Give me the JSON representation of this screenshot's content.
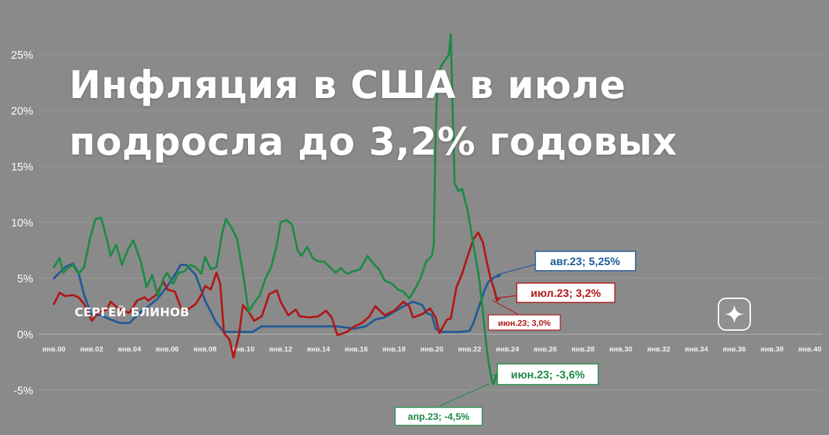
{
  "headline": {
    "line1": "Инфляция в США в июле",
    "line2": "подросла до 3,2% годовых"
  },
  "author": "СЕРГЕЙ БЛИНОВ",
  "colors": {
    "background": "#8a8a8a",
    "blue": "#1f5a96",
    "red": "#b01818",
    "green": "#1e8a46",
    "grid": "#9a9a9a",
    "axis_text": "#ffffff"
  },
  "chart_data": {
    "type": "line",
    "title": "",
    "xlabel": "",
    "ylabel": "",
    "ylim": [
      -7,
      30
    ],
    "xlim": [
      2000,
      2040.5
    ],
    "grid": true,
    "y_ticks": [
      {
        "v": 25,
        "label": "25%"
      },
      {
        "v": 20,
        "label": "20%"
      },
      {
        "v": 15,
        "label": "15%"
      },
      {
        "v": 10,
        "label": "10%"
      },
      {
        "v": 5,
        "label": "5%"
      },
      {
        "v": 0,
        "label": "0%"
      },
      {
        "v": -5,
        "label": "-5%"
      }
    ],
    "x_ticks": [
      {
        "v": 2000,
        "label": "янв.00"
      },
      {
        "v": 2002,
        "label": "янв.02"
      },
      {
        "v": 2004,
        "label": "янв.04"
      },
      {
        "v": 2006,
        "label": "янв.06"
      },
      {
        "v": 2008,
        "label": "янв.08"
      },
      {
        "v": 2010,
        "label": "янв.10"
      },
      {
        "v": 2012,
        "label": "янв.12"
      },
      {
        "v": 2014,
        "label": "янв.14"
      },
      {
        "v": 2016,
        "label": "янв.16"
      },
      {
        "v": 2018,
        "label": "янв.18"
      },
      {
        "v": 2020,
        "label": "янв.20"
      },
      {
        "v": 2022,
        "label": "янв.22"
      },
      {
        "v": 2024,
        "label": "янв.24"
      },
      {
        "v": 2026,
        "label": "янв.26"
      },
      {
        "v": 2028,
        "label": "янв.28"
      },
      {
        "v": 2030,
        "label": "янв.30"
      },
      {
        "v": 2032,
        "label": "янв.32"
      },
      {
        "v": 2034,
        "label": "янв.34"
      },
      {
        "v": 2036,
        "label": "янв.36"
      },
      {
        "v": 2038,
        "label": "янв.38"
      },
      {
        "v": 2040,
        "label": "янв.40"
      }
    ],
    "series": [
      {
        "color": "#1f5a96",
        "points": [
          [
            2000.0,
            5.0
          ],
          [
            2000.3,
            5.5
          ],
          [
            2000.6,
            6.0
          ],
          [
            2001.0,
            6.3
          ],
          [
            2001.3,
            5.5
          ],
          [
            2001.6,
            3.5
          ],
          [
            2002.0,
            1.7
          ],
          [
            2002.5,
            1.7
          ],
          [
            2003.0,
            1.3
          ],
          [
            2003.5,
            1.0
          ],
          [
            2004.0,
            1.0
          ],
          [
            2004.3,
            1.5
          ],
          [
            2004.6,
            2.0
          ],
          [
            2005.0,
            2.5
          ],
          [
            2005.5,
            3.2
          ],
          [
            2006.0,
            4.3
          ],
          [
            2006.4,
            5.3
          ],
          [
            2006.7,
            6.2
          ],
          [
            2007.0,
            6.2
          ],
          [
            2007.5,
            5.3
          ],
          [
            2008.0,
            3.0
          ],
          [
            2008.3,
            2.0
          ],
          [
            2008.6,
            1.0
          ],
          [
            2009.0,
            0.2
          ],
          [
            2010.0,
            0.2
          ],
          [
            2010.5,
            0.2
          ],
          [
            2011.0,
            0.7
          ],
          [
            2012.0,
            0.7
          ],
          [
            2013.0,
            0.7
          ],
          [
            2014.0,
            0.7
          ],
          [
            2015.0,
            0.7
          ],
          [
            2015.9,
            0.5
          ],
          [
            2016.5,
            0.7
          ],
          [
            2017.0,
            1.3
          ],
          [
            2017.5,
            1.5
          ],
          [
            2018.0,
            2.0
          ],
          [
            2018.5,
            2.5
          ],
          [
            2019.0,
            2.9
          ],
          [
            2019.5,
            2.6
          ],
          [
            2019.7,
            1.9
          ],
          [
            2020.0,
            1.7
          ],
          [
            2020.2,
            0.5
          ],
          [
            2020.5,
            0.2
          ],
          [
            2021.5,
            0.2
          ],
          [
            2022.0,
            0.3
          ],
          [
            2022.2,
            1.0
          ],
          [
            2022.5,
            2.5
          ],
          [
            2022.8,
            4.0
          ],
          [
            2023.0,
            4.7
          ],
          [
            2023.3,
            5.1
          ],
          [
            2023.6,
            5.25
          ]
        ]
      },
      {
        "color": "#b01818",
        "points": [
          [
            2000.0,
            2.7
          ],
          [
            2000.3,
            3.7
          ],
          [
            2000.6,
            3.4
          ],
          [
            2001.0,
            3.5
          ],
          [
            2001.3,
            3.3
          ],
          [
            2001.6,
            2.7
          ],
          [
            2002.0,
            1.2
          ],
          [
            2002.4,
            2.0
          ],
          [
            2002.8,
            2.2
          ],
          [
            2003.0,
            2.9
          ],
          [
            2003.4,
            2.3
          ],
          [
            2003.8,
            2.0
          ],
          [
            2004.0,
            1.9
          ],
          [
            2004.4,
            3.0
          ],
          [
            2004.8,
            3.3
          ],
          [
            2005.0,
            3.0
          ],
          [
            2005.4,
            3.5
          ],
          [
            2005.8,
            4.7
          ],
          [
            2006.0,
            4.0
          ],
          [
            2006.4,
            3.8
          ],
          [
            2006.8,
            2.0
          ],
          [
            2007.0,
            2.1
          ],
          [
            2007.5,
            2.7
          ],
          [
            2007.8,
            3.5
          ],
          [
            2008.0,
            4.3
          ],
          [
            2008.3,
            4.0
          ],
          [
            2008.6,
            5.5
          ],
          [
            2008.8,
            4.5
          ],
          [
            2009.0,
            0.1
          ],
          [
            2009.3,
            -0.5
          ],
          [
            2009.5,
            -2.1
          ],
          [
            2009.8,
            0.0
          ],
          [
            2010.0,
            2.6
          ],
          [
            2010.3,
            2.0
          ],
          [
            2010.6,
            1.2
          ],
          [
            2011.0,
            1.6
          ],
          [
            2011.4,
            3.6
          ],
          [
            2011.8,
            3.9
          ],
          [
            2012.0,
            2.9
          ],
          [
            2012.4,
            1.7
          ],
          [
            2012.8,
            2.2
          ],
          [
            2013.0,
            1.6
          ],
          [
            2013.5,
            1.5
          ],
          [
            2014.0,
            1.6
          ],
          [
            2014.4,
            2.1
          ],
          [
            2014.7,
            1.5
          ],
          [
            2015.0,
            -0.1
          ],
          [
            2015.5,
            0.2
          ],
          [
            2015.9,
            0.7
          ],
          [
            2016.3,
            1.0
          ],
          [
            2016.7,
            1.6
          ],
          [
            2017.0,
            2.5
          ],
          [
            2017.5,
            1.7
          ],
          [
            2018.0,
            2.1
          ],
          [
            2018.5,
            2.9
          ],
          [
            2018.8,
            2.5
          ],
          [
            2019.0,
            1.5
          ],
          [
            2019.5,
            1.8
          ],
          [
            2019.9,
            2.3
          ],
          [
            2020.2,
            1.5
          ],
          [
            2020.4,
            0.1
          ],
          [
            2020.8,
            1.3
          ],
          [
            2021.0,
            1.4
          ],
          [
            2021.3,
            4.2
          ],
          [
            2021.6,
            5.4
          ],
          [
            2021.9,
            7.0
          ],
          [
            2022.2,
            8.5
          ],
          [
            2022.45,
            9.1
          ],
          [
            2022.7,
            8.2
          ],
          [
            2022.9,
            6.5
          ],
          [
            2023.1,
            5.0
          ],
          [
            2023.3,
            4.0
          ],
          [
            2023.45,
            3.0
          ],
          [
            2023.55,
            3.2
          ]
        ]
      },
      {
        "color": "#1e8a46",
        "points": [
          [
            2000.0,
            6.0
          ],
          [
            2000.3,
            6.8
          ],
          [
            2000.5,
            5.5
          ],
          [
            2000.8,
            6.0
          ],
          [
            2001.0,
            6.2
          ],
          [
            2001.3,
            5.4
          ],
          [
            2001.6,
            6.0
          ],
          [
            2001.9,
            8.5
          ],
          [
            2002.2,
            10.3
          ],
          [
            2002.5,
            10.4
          ],
          [
            2002.8,
            8.5
          ],
          [
            2003.0,
            7.0
          ],
          [
            2003.3,
            8.0
          ],
          [
            2003.6,
            6.2
          ],
          [
            2003.9,
            7.5
          ],
          [
            2004.2,
            8.4
          ],
          [
            2004.6,
            6.5
          ],
          [
            2004.9,
            4.2
          ],
          [
            2005.2,
            5.3
          ],
          [
            2005.5,
            3.4
          ],
          [
            2005.8,
            5.0
          ],
          [
            2006.0,
            5.5
          ],
          [
            2006.3,
            4.5
          ],
          [
            2006.6,
            5.5
          ],
          [
            2006.9,
            5.6
          ],
          [
            2007.2,
            6.2
          ],
          [
            2007.5,
            6.0
          ],
          [
            2007.8,
            5.4
          ],
          [
            2008.0,
            6.9
          ],
          [
            2008.3,
            5.8
          ],
          [
            2008.6,
            6.0
          ],
          [
            2008.9,
            9.0
          ],
          [
            2009.1,
            10.3
          ],
          [
            2009.4,
            9.5
          ],
          [
            2009.7,
            8.5
          ],
          [
            2010.0,
            5.5
          ],
          [
            2010.3,
            2.0
          ],
          [
            2010.6,
            2.8
          ],
          [
            2010.9,
            3.5
          ],
          [
            2011.2,
            5.0
          ],
          [
            2011.5,
            6.0
          ],
          [
            2011.8,
            8.0
          ],
          [
            2012.0,
            10.0
          ],
          [
            2012.3,
            10.2
          ],
          [
            2012.6,
            9.8
          ],
          [
            2012.9,
            7.5
          ],
          [
            2013.1,
            7.0
          ],
          [
            2013.4,
            7.8
          ],
          [
            2013.7,
            6.8
          ],
          [
            2014.0,
            6.5
          ],
          [
            2014.3,
            6.5
          ],
          [
            2014.6,
            6.0
          ],
          [
            2014.9,
            5.5
          ],
          [
            2015.2,
            5.9
          ],
          [
            2015.5,
            5.4
          ],
          [
            2015.8,
            5.6
          ],
          [
            2016.2,
            5.8
          ],
          [
            2016.6,
            7.0
          ],
          [
            2016.9,
            6.3
          ],
          [
            2017.2,
            5.8
          ],
          [
            2017.5,
            4.8
          ],
          [
            2017.9,
            4.5
          ],
          [
            2018.2,
            4.0
          ],
          [
            2018.5,
            3.8
          ],
          [
            2018.8,
            3.2
          ],
          [
            2019.1,
            4.0
          ],
          [
            2019.4,
            5.0
          ],
          [
            2019.7,
            6.5
          ],
          [
            2020.0,
            7.0
          ],
          [
            2020.1,
            8.0
          ],
          [
            2020.2,
            18.0
          ],
          [
            2020.3,
            23.0
          ],
          [
            2020.5,
            24.0
          ],
          [
            2020.7,
            24.5
          ],
          [
            2020.9,
            25.0
          ],
          [
            2021.0,
            26.8
          ],
          [
            2021.1,
            20.0
          ],
          [
            2021.2,
            13.5
          ],
          [
            2021.4,
            12.8
          ],
          [
            2021.6,
            13.0
          ],
          [
            2021.9,
            11.0
          ],
          [
            2022.2,
            8.0
          ],
          [
            2022.5,
            5.0
          ],
          [
            2022.7,
            2.0
          ],
          [
            2022.85,
            -0.5
          ],
          [
            2023.0,
            -2.5
          ],
          [
            2023.15,
            -4.0
          ],
          [
            2023.25,
            -4.5
          ],
          [
            2023.42,
            -3.6
          ]
        ]
      }
    ],
    "annotations": [
      {
        "text": "авг.23; 5,25%",
        "color": "#1f5a96",
        "at": [
          2023.6,
          5.25
        ]
      },
      {
        "text": "июл.23; 3,2%",
        "color": "#b01818",
        "at": [
          2023.55,
          3.2
        ]
      },
      {
        "text": "июн.23; 3,0%",
        "color": "#b01818",
        "at": [
          2023.45,
          3.0
        ]
      },
      {
        "text": "июн.23; -3,6%",
        "color": "#1e8a46",
        "at": [
          2023.42,
          -3.6
        ]
      },
      {
        "text": "апр.23; -4,5%",
        "color": "#1e8a46",
        "at": [
          2023.25,
          -4.5
        ]
      }
    ]
  }
}
